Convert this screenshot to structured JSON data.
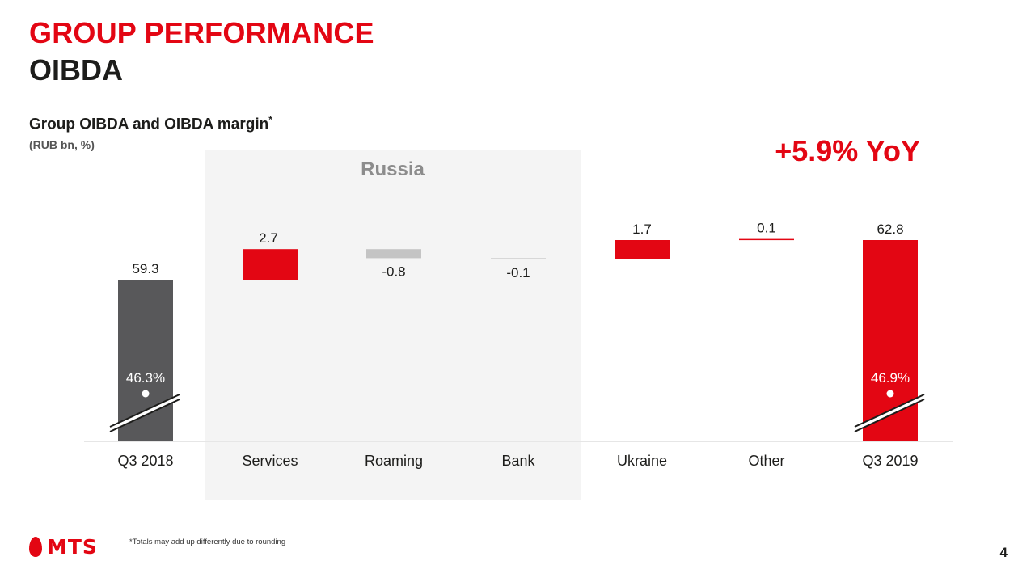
{
  "header": {
    "title": "GROUP PERFORMANCE",
    "subtitle": "OIBDA"
  },
  "chart_data": {
    "type": "bar",
    "title": "Group OIBDA and OIBDA margin",
    "title_marker": "*",
    "units": "(RUB bn, %)",
    "headline": "+5.9% YoY",
    "group_label": "Russia",
    "categories": [
      "Q3 2018",
      "Services",
      "Roaming",
      "Bank",
      "Ukraine",
      "Other",
      "Q3 2019"
    ],
    "bars": [
      {
        "category": "Q3 2018",
        "kind": "total",
        "value": 59.3,
        "label": "59.3",
        "color": "#58585a"
      },
      {
        "category": "Services",
        "kind": "delta",
        "value": 2.7,
        "label": "2.7",
        "color": "#e30613"
      },
      {
        "category": "Roaming",
        "kind": "delta",
        "value": -0.8,
        "label": "-0.8",
        "color": "#c4c4c4"
      },
      {
        "category": "Bank",
        "kind": "delta",
        "value": -0.1,
        "label": "-0.1",
        "color": "#c4c4c4"
      },
      {
        "category": "Ukraine",
        "kind": "delta",
        "value": 1.7,
        "label": "1.7",
        "color": "#e30613"
      },
      {
        "category": "Other",
        "kind": "delta",
        "value": 0.1,
        "label": "0.1",
        "color": "#e30613"
      },
      {
        "category": "Q3 2019",
        "kind": "total",
        "value": 62.8,
        "label": "62.8",
        "color": "#e30613"
      }
    ],
    "margins": [
      {
        "category": "Q3 2018",
        "value": 46.3,
        "label": "46.3%"
      },
      {
        "category": "Q3 2019",
        "value": 46.9,
        "label": "46.9%"
      }
    ],
    "axis_break": true,
    "grid": false
  },
  "footer": {
    "footnote": "*Totals may add up differently due to rounding",
    "logo_text": "MTS",
    "page_number": "4"
  },
  "colors": {
    "brand_red": "#e30613",
    "dark_gray": "#58585a",
    "light_gray": "#c4c4c4",
    "panel_bg": "#f4f4f4"
  }
}
